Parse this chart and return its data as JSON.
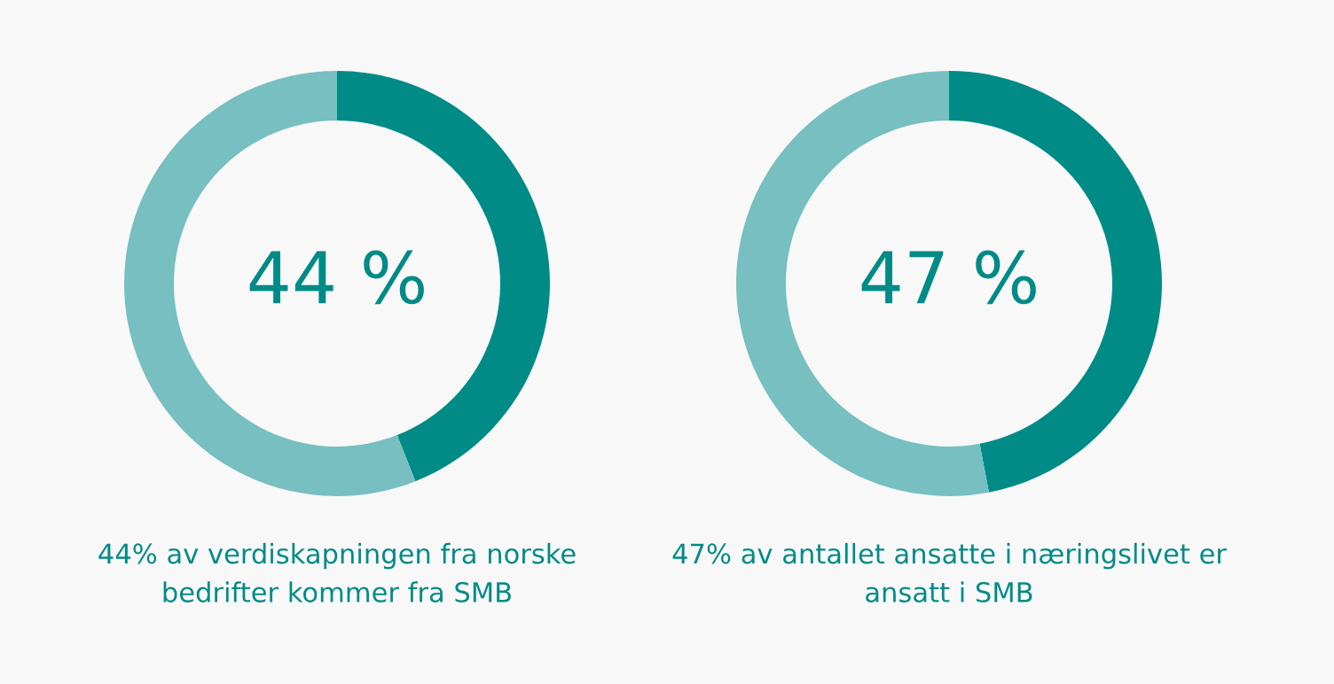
{
  "chart_data": [
    {
      "type": "donut",
      "categories": [
        null,
        null
      ],
      "values": [
        44,
        56
      ],
      "colors": [
        "#008b87",
        "#77bfc0"
      ],
      "value_labels": [
        "44 %",
        null
      ],
      "annotations": [
        "44% av verdiskapningen fra norske\nbedrifter kommer fra SMB"
      ]
    },
    {
      "type": "donut",
      "categories": [
        null,
        null
      ],
      "values": [
        47,
        53
      ],
      "colors": [
        "#008b87",
        "#77bfc0"
      ],
      "value_labels": [
        "47 %",
        null
      ],
      "annotations": [
        "47% av antallet ansatte i næringslivet er\nansatt i SMB"
      ]
    }
  ]
}
